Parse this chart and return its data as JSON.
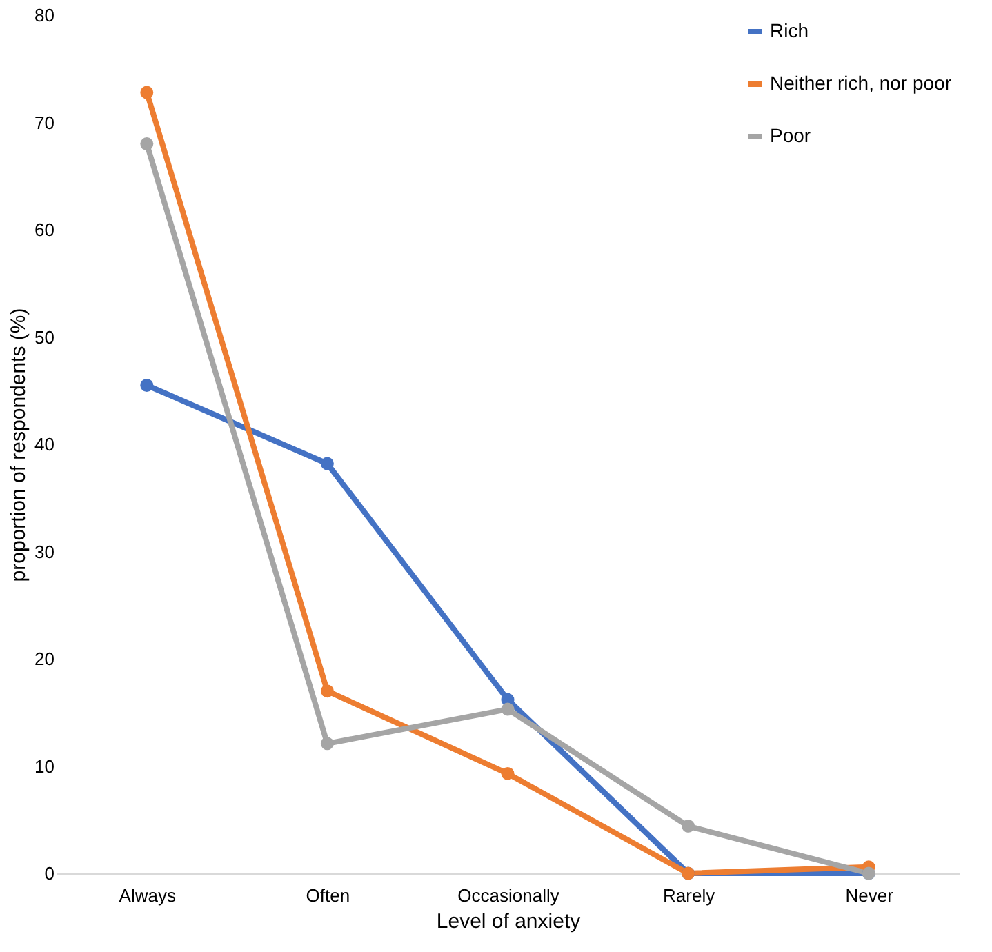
{
  "chart_data": {
    "type": "line",
    "xlabel": "Level of anxiety",
    "ylabel": "proportion of respondents (%)",
    "categories": [
      "Always",
      "Often",
      "Occasionally",
      "Rarely",
      "Never"
    ],
    "series": [
      {
        "name": "Rich",
        "color": "#4472c4",
        "values": [
          45.5,
          38.2,
          16.2,
          0,
          0
        ]
      },
      {
        "name": "Neither rich, nor poor",
        "color": "#ed7d31",
        "values": [
          72.8,
          17.0,
          9.3,
          0,
          0.6
        ]
      },
      {
        "name": "Poor",
        "color": "#a5a5a5",
        "values": [
          68.0,
          12.1,
          15.3,
          4.4,
          0
        ]
      }
    ],
    "ylim": [
      0,
      80
    ],
    "yticks": [
      0,
      10,
      20,
      30,
      40,
      50,
      60,
      70,
      80
    ],
    "grid": false,
    "legend": "top right",
    "marker": "circle",
    "line_style": "solid"
  }
}
